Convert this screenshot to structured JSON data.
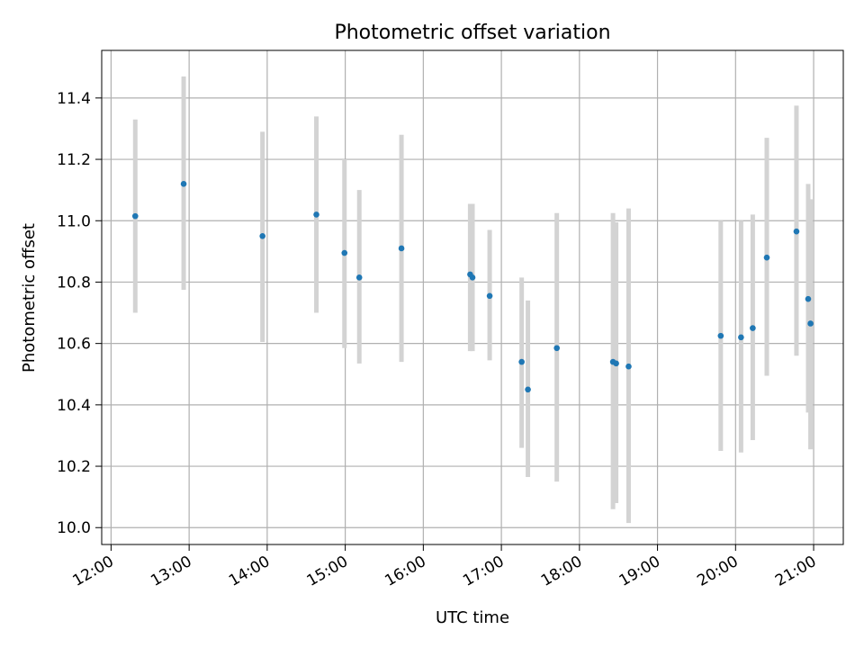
{
  "chart_data": {
    "type": "scatter",
    "title": "Photometric offset variation",
    "xlabel": "UTC time",
    "ylabel": "Photometric offset",
    "x_unit": "UTC time (hours)",
    "xlim": [
      11.88,
      21.38
    ],
    "ylim": [
      9.945,
      11.555
    ],
    "x_ticks": [
      {
        "value": 12,
        "label": "12:00"
      },
      {
        "value": 13,
        "label": "13:00"
      },
      {
        "value": 14,
        "label": "14:00"
      },
      {
        "value": 15,
        "label": "15:00"
      },
      {
        "value": 16,
        "label": "16:00"
      },
      {
        "value": 17,
        "label": "17:00"
      },
      {
        "value": 18,
        "label": "18:00"
      },
      {
        "value": 19,
        "label": "19:00"
      },
      {
        "value": 20,
        "label": "20:00"
      },
      {
        "value": 21,
        "label": "21:00"
      }
    ],
    "y_ticks": [
      {
        "value": 10.0,
        "label": "10.0"
      },
      {
        "value": 10.2,
        "label": "10.2"
      },
      {
        "value": 10.4,
        "label": "10.4"
      },
      {
        "value": 10.6,
        "label": "10.6"
      },
      {
        "value": 10.8,
        "label": "10.8"
      },
      {
        "value": 11.0,
        "label": "11.0"
      },
      {
        "value": 11.2,
        "label": "11.2"
      },
      {
        "value": 11.4,
        "label": "11.4"
      }
    ],
    "grid": true,
    "colors": {
      "point": "#1f77b4",
      "errorbar": "#d3d3d3",
      "grid": "#b0b0b0",
      "axis": "#000000"
    },
    "series": [
      {
        "points": [
          {
            "x": 12.31,
            "y": 11.015,
            "low": 10.7,
            "high": 11.33
          },
          {
            "x": 12.93,
            "y": 11.12,
            "low": 10.775,
            "high": 11.47
          },
          {
            "x": 13.94,
            "y": 10.95,
            "low": 10.605,
            "high": 11.29
          },
          {
            "x": 14.63,
            "y": 11.02,
            "low": 10.7,
            "high": 11.34
          },
          {
            "x": 14.99,
            "y": 10.895,
            "low": 10.585,
            "high": 11.2
          },
          {
            "x": 15.18,
            "y": 10.815,
            "low": 10.535,
            "high": 11.1
          },
          {
            "x": 15.72,
            "y": 10.91,
            "low": 10.54,
            "high": 11.28
          },
          {
            "x": 16.6,
            "y": 10.825,
            "low": 10.575,
            "high": 11.055
          },
          {
            "x": 16.63,
            "y": 10.815,
            "low": 10.575,
            "high": 11.055
          },
          {
            "x": 16.85,
            "y": 10.755,
            "low": 10.545,
            "high": 10.97
          },
          {
            "x": 17.26,
            "y": 10.54,
            "low": 10.26,
            "high": 10.815
          },
          {
            "x": 17.34,
            "y": 10.45,
            "low": 10.165,
            "high": 10.74
          },
          {
            "x": 17.71,
            "y": 10.585,
            "low": 10.15,
            "high": 11.025
          },
          {
            "x": 18.43,
            "y": 10.54,
            "low": 10.06,
            "high": 11.025
          },
          {
            "x": 18.47,
            "y": 10.535,
            "low": 10.08,
            "high": 10.995
          },
          {
            "x": 18.63,
            "y": 10.525,
            "low": 10.015,
            "high": 11.04
          },
          {
            "x": 19.81,
            "y": 10.625,
            "low": 10.25,
            "high": 11.0
          },
          {
            "x": 20.07,
            "y": 10.62,
            "low": 10.245,
            "high": 11.0
          },
          {
            "x": 20.22,
            "y": 10.65,
            "low": 10.285,
            "high": 11.02
          },
          {
            "x": 20.4,
            "y": 10.88,
            "low": 10.495,
            "high": 11.27
          },
          {
            "x": 20.78,
            "y": 10.965,
            "low": 10.56,
            "high": 11.375
          },
          {
            "x": 20.93,
            "y": 10.745,
            "low": 10.375,
            "high": 11.12
          },
          {
            "x": 20.96,
            "y": 10.665,
            "low": 10.255,
            "high": 11.07
          }
        ]
      }
    ]
  }
}
